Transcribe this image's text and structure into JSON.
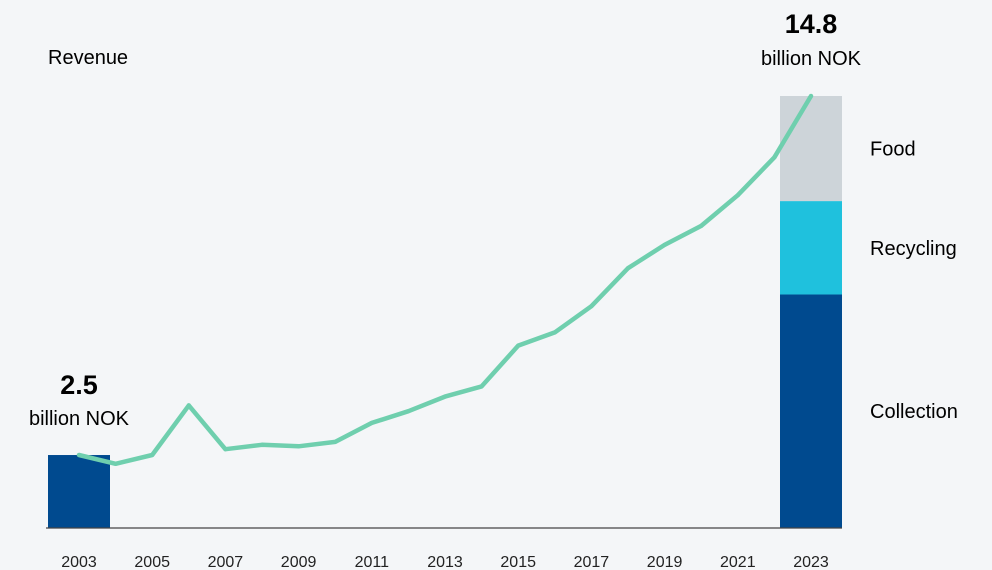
{
  "chart_data": {
    "type": "line",
    "title": "Revenue",
    "colors": {
      "line": "#6fcfae",
      "collection": "#004a8f",
      "recycling": "#1fc1dd",
      "food": "#cdd4d9",
      "axis": "#444444",
      "background": "#f4f6f8"
    },
    "x_ticks": [
      "2003",
      "2005",
      "2007",
      "2009",
      "2011",
      "2013",
      "2015",
      "2017",
      "2019",
      "2021",
      "2023"
    ],
    "series": [
      {
        "x": [
          2003,
          2004,
          2005,
          2006,
          2007,
          2008,
          2009,
          2010,
          2011,
          2012,
          2013,
          2014,
          2015,
          2016,
          2017,
          2018,
          2019,
          2020,
          2021,
          2022,
          2023
        ],
        "values": [
          2.5,
          2.2,
          2.5,
          4.2,
          2.7,
          2.85,
          2.8,
          2.95,
          3.6,
          4.0,
          4.5,
          4.85,
          6.25,
          6.7,
          7.6,
          8.9,
          9.7,
          10.35,
          11.4,
          12.7,
          14.8
        ]
      }
    ],
    "bars": [
      {
        "x": 2003,
        "total": 2.5,
        "value_label": "2.5",
        "unit_label": "billion NOK",
        "segments": [
          {
            "name": "",
            "value": 2.5,
            "color": "#004a8f"
          }
        ]
      },
      {
        "x": 2023,
        "total": 14.8,
        "value_label": "14.8",
        "unit_label": "billion NOK",
        "segments": [
          {
            "name": "Collection",
            "value": 8.0,
            "color": "#004a8f"
          },
          {
            "name": "Recycling",
            "value": 3.2,
            "color": "#1fc1dd"
          },
          {
            "name": "Food",
            "value": 3.6,
            "color": "#cdd4d9"
          }
        ]
      }
    ],
    "xlim": [
      2003,
      2023
    ],
    "ylim": [
      0,
      14.8
    ],
    "grid": false
  }
}
